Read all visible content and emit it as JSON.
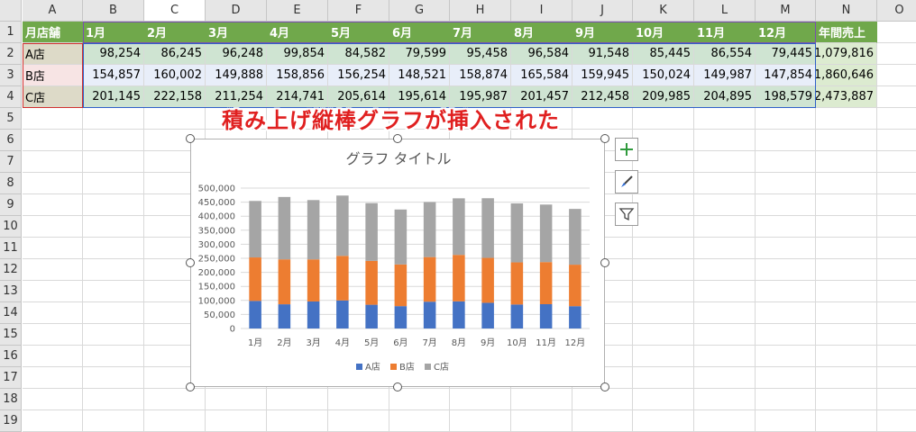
{
  "columns": [
    "A",
    "B",
    "C",
    "D",
    "E",
    "F",
    "G",
    "H",
    "I",
    "J",
    "K",
    "L",
    "M",
    "N",
    "O"
  ],
  "rows": [
    "1",
    "2",
    "3",
    "4",
    "5",
    "6",
    "7",
    "8",
    "9",
    "10",
    "11",
    "12",
    "13",
    "14",
    "15",
    "16",
    "17",
    "18",
    "19"
  ],
  "table": {
    "header": [
      "月店舗",
      "1月",
      "2月",
      "3月",
      "4月",
      "5月",
      "6月",
      "7月",
      "8月",
      "9月",
      "10月",
      "11月",
      "12月",
      "年間売上"
    ],
    "data": [
      {
        "store": "A店",
        "values": [
          "98,254",
          "86,245",
          "96,248",
          "99,854",
          "84,582",
          "79,599",
          "95,458",
          "96,584",
          "91,548",
          "85,445",
          "86,554",
          "79,445"
        ],
        "total": "1,079,816"
      },
      {
        "store": "B店",
        "values": [
          "154,857",
          "160,002",
          "149,888",
          "158,856",
          "156,254",
          "148,521",
          "158,874",
          "165,584",
          "159,945",
          "150,024",
          "149,987",
          "147,854"
        ],
        "total": "1,860,646"
      },
      {
        "store": "C店",
        "values": [
          "201,145",
          "222,158",
          "211,254",
          "214,741",
          "205,614",
          "195,614",
          "195,987",
          "201,457",
          "212,458",
          "209,985",
          "204,895",
          "198,579"
        ],
        "total": "2,473,887"
      }
    ]
  },
  "annotation": "積み上げ縦棒グラフが挿入された",
  "chart_data": {
    "type": "bar",
    "stacked": true,
    "title": "グラフ タイトル",
    "categories": [
      "1月",
      "2月",
      "3月",
      "4月",
      "5月",
      "6月",
      "7月",
      "8月",
      "9月",
      "10月",
      "11月",
      "12月"
    ],
    "series": [
      {
        "name": "A店",
        "color": "#4472c4",
        "values": [
          98254,
          86245,
          96248,
          99854,
          84582,
          79599,
          95458,
          96584,
          91548,
          85445,
          86554,
          79445
        ]
      },
      {
        "name": "B店",
        "color": "#ed7d31",
        "values": [
          154857,
          160002,
          149888,
          158856,
          156254,
          148521,
          158874,
          165584,
          159945,
          150024,
          149987,
          147854
        ]
      },
      {
        "name": "C店",
        "color": "#a5a5a5",
        "values": [
          201145,
          222158,
          211254,
          214741,
          205614,
          195614,
          195987,
          201457,
          212458,
          209985,
          204895,
          198579
        ]
      }
    ],
    "ylim": [
      0,
      500000
    ],
    "yticks": [
      "0",
      "50,000",
      "100,000",
      "150,000",
      "200,000",
      "250,000",
      "300,000",
      "350,000",
      "400,000",
      "450,000",
      "500,000"
    ],
    "grid": true,
    "legend": "bottom"
  },
  "chart_tools": {
    "elements": "chart-elements-icon",
    "styles": "chart-styles-icon",
    "filters": "chart-filters-icon"
  }
}
